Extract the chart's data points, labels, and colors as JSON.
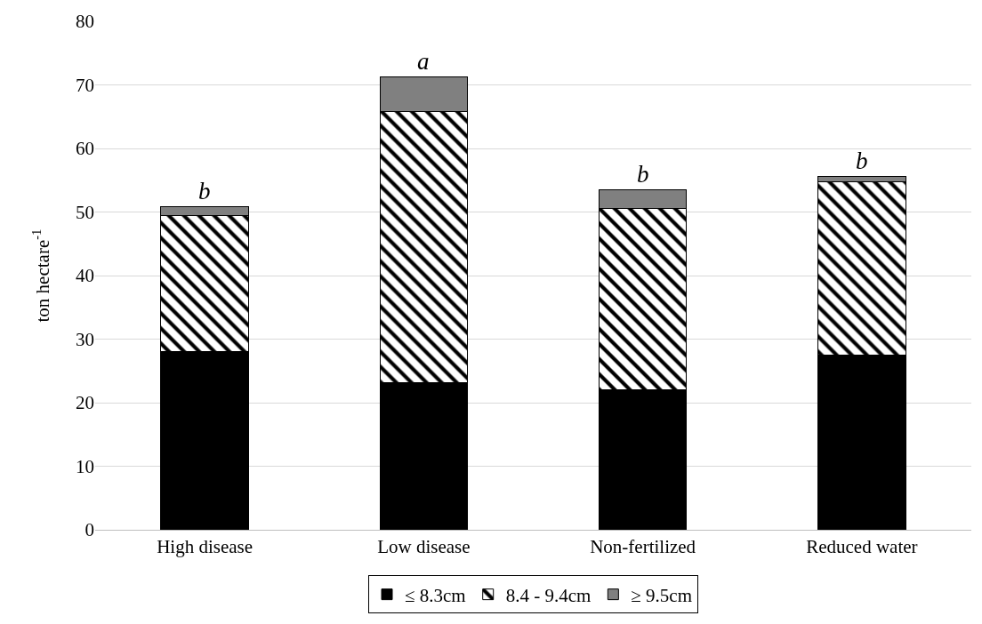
{
  "chart_data": {
    "type": "bar",
    "stacked": true,
    "ylabel": "ton hectare$^{-1}$",
    "categories": [
      "High disease",
      "Low disease",
      "Non-fertilized",
      "Reduced water"
    ],
    "series": [
      {
        "name": "≤ 8.3cm",
        "color": "#000000",
        "values": [
          28.1,
          23.2,
          22.0,
          27.5
        ]
      },
      {
        "name": "8.4 - 9.4cm",
        "color": "#000000",
        "values": [
          21.3,
          42.6,
          28.6,
          27.2
        ]
      },
      {
        "name": "≥ 9.5cm",
        "color": "#808080",
        "values": [
          1.5,
          5.5,
          2.9,
          0.9
        ]
      }
    ],
    "ylim": [
      0,
      80
    ],
    "yticks": [
      0,
      10,
      20,
      30,
      40,
      50,
      60,
      70,
      80
    ],
    "grid": "y",
    "legend": "bottom",
    "annotations": [
      {
        "text": "b",
        "x": "High disease",
        "y": 50.9
      },
      {
        "text": "a",
        "x": "Low disease",
        "y": 71.3
      },
      {
        "text": "b",
        "x": "Non-fertilized",
        "y": 53.5
      },
      {
        "text": "b",
        "x": "Reduced water",
        "y": 55.6
      }
    ]
  }
}
